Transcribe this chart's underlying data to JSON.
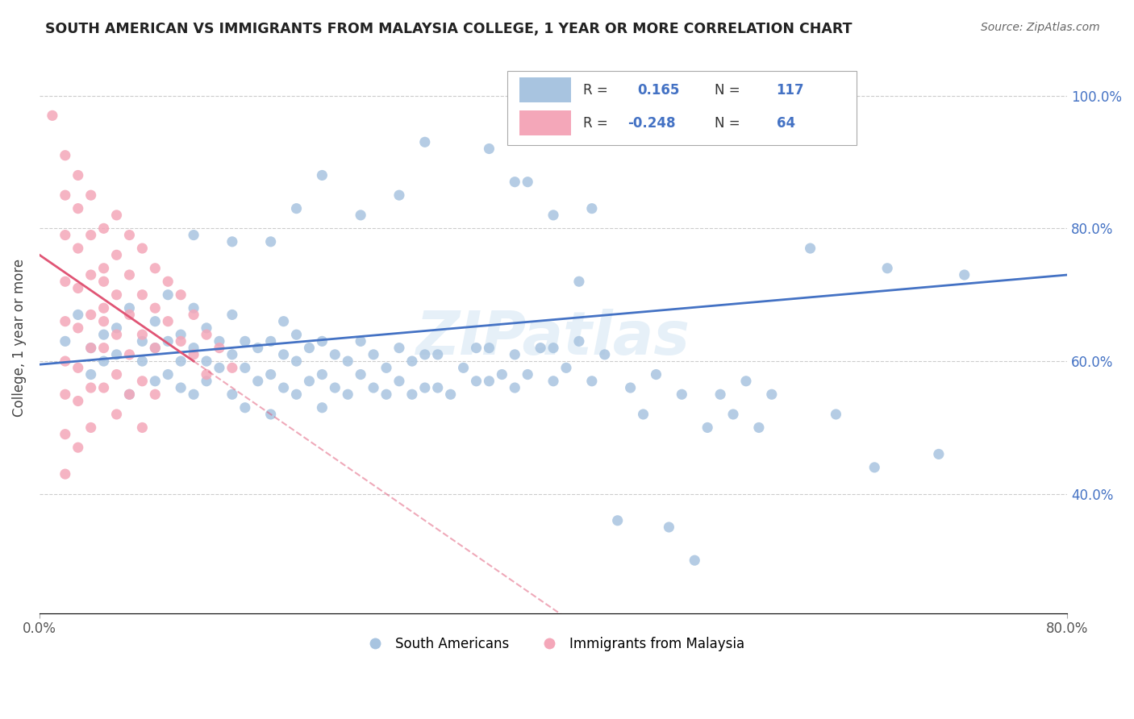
{
  "title": "SOUTH AMERICAN VS IMMIGRANTS FROM MALAYSIA COLLEGE, 1 YEAR OR MORE CORRELATION CHART",
  "source": "Source: ZipAtlas.com",
  "ylabel": "College, 1 year or more",
  "xlim": [
    0.0,
    0.8
  ],
  "ylim": [
    0.22,
    1.05
  ],
  "r_blue": 0.165,
  "n_blue": 117,
  "r_pink": -0.248,
  "n_pink": 64,
  "legend_blue": "South Americans",
  "legend_pink": "Immigrants from Malaysia",
  "blue_color": "#a8c4e0",
  "pink_color": "#f4a7b9",
  "blue_line_color": "#4472c4",
  "pink_line_color": "#e05575",
  "watermark": "ZIPatlas",
  "blue_scatter": [
    [
      0.02,
      0.63
    ],
    [
      0.03,
      0.67
    ],
    [
      0.04,
      0.58
    ],
    [
      0.04,
      0.62
    ],
    [
      0.05,
      0.64
    ],
    [
      0.05,
      0.6
    ],
    [
      0.06,
      0.61
    ],
    [
      0.06,
      0.65
    ],
    [
      0.07,
      0.55
    ],
    [
      0.07,
      0.68
    ],
    [
      0.08,
      0.6
    ],
    [
      0.08,
      0.63
    ],
    [
      0.09,
      0.57
    ],
    [
      0.09,
      0.62
    ],
    [
      0.09,
      0.66
    ],
    [
      0.1,
      0.58
    ],
    [
      0.1,
      0.63
    ],
    [
      0.1,
      0.7
    ],
    [
      0.11,
      0.56
    ],
    [
      0.11,
      0.6
    ],
    [
      0.11,
      0.64
    ],
    [
      0.12,
      0.55
    ],
    [
      0.12,
      0.62
    ],
    [
      0.12,
      0.68
    ],
    [
      0.13,
      0.57
    ],
    [
      0.13,
      0.6
    ],
    [
      0.13,
      0.65
    ],
    [
      0.14,
      0.59
    ],
    [
      0.14,
      0.63
    ],
    [
      0.15,
      0.55
    ],
    [
      0.15,
      0.61
    ],
    [
      0.15,
      0.67
    ],
    [
      0.16,
      0.53
    ],
    [
      0.16,
      0.59
    ],
    [
      0.16,
      0.63
    ],
    [
      0.17,
      0.57
    ],
    [
      0.17,
      0.62
    ],
    [
      0.18,
      0.52
    ],
    [
      0.18,
      0.58
    ],
    [
      0.18,
      0.63
    ],
    [
      0.19,
      0.56
    ],
    [
      0.19,
      0.61
    ],
    [
      0.19,
      0.66
    ],
    [
      0.2,
      0.55
    ],
    [
      0.2,
      0.6
    ],
    [
      0.2,
      0.64
    ],
    [
      0.21,
      0.57
    ],
    [
      0.21,
      0.62
    ],
    [
      0.22,
      0.53
    ],
    [
      0.22,
      0.58
    ],
    [
      0.22,
      0.63
    ],
    [
      0.23,
      0.56
    ],
    [
      0.23,
      0.61
    ],
    [
      0.24,
      0.55
    ],
    [
      0.24,
      0.6
    ],
    [
      0.25,
      0.58
    ],
    [
      0.25,
      0.63
    ],
    [
      0.26,
      0.56
    ],
    [
      0.26,
      0.61
    ],
    [
      0.27,
      0.55
    ],
    [
      0.27,
      0.59
    ],
    [
      0.28,
      0.57
    ],
    [
      0.28,
      0.62
    ],
    [
      0.29,
      0.55
    ],
    [
      0.29,
      0.6
    ],
    [
      0.3,
      0.56
    ],
    [
      0.3,
      0.61
    ],
    [
      0.31,
      0.56
    ],
    [
      0.31,
      0.61
    ],
    [
      0.32,
      0.55
    ],
    [
      0.33,
      0.59
    ],
    [
      0.34,
      0.57
    ],
    [
      0.34,
      0.62
    ],
    [
      0.35,
      0.57
    ],
    [
      0.35,
      0.62
    ],
    [
      0.36,
      0.58
    ],
    [
      0.37,
      0.56
    ],
    [
      0.37,
      0.61
    ],
    [
      0.38,
      0.58
    ],
    [
      0.39,
      0.62
    ],
    [
      0.4,
      0.57
    ],
    [
      0.4,
      0.62
    ],
    [
      0.41,
      0.59
    ],
    [
      0.42,
      0.63
    ],
    [
      0.43,
      0.57
    ],
    [
      0.44,
      0.61
    ],
    [
      0.45,
      0.36
    ],
    [
      0.46,
      0.56
    ],
    [
      0.47,
      0.52
    ],
    [
      0.48,
      0.58
    ],
    [
      0.49,
      0.35
    ],
    [
      0.5,
      0.55
    ],
    [
      0.51,
      0.3
    ],
    [
      0.52,
      0.5
    ],
    [
      0.53,
      0.55
    ],
    [
      0.54,
      0.52
    ],
    [
      0.55,
      0.57
    ],
    [
      0.56,
      0.5
    ],
    [
      0.57,
      0.55
    ],
    [
      0.3,
      0.93
    ],
    [
      0.35,
      0.92
    ],
    [
      0.37,
      0.87
    ],
    [
      0.4,
      0.82
    ],
    [
      0.43,
      0.83
    ],
    [
      0.38,
      0.87
    ],
    [
      0.42,
      0.72
    ],
    [
      0.22,
      0.88
    ],
    [
      0.2,
      0.83
    ],
    [
      0.25,
      0.82
    ],
    [
      0.28,
      0.85
    ],
    [
      0.18,
      0.78
    ],
    [
      0.15,
      0.78
    ],
    [
      0.12,
      0.79
    ],
    [
      0.6,
      0.77
    ],
    [
      0.62,
      0.52
    ],
    [
      0.65,
      0.44
    ],
    [
      0.66,
      0.74
    ],
    [
      0.7,
      0.46
    ],
    [
      0.72,
      0.73
    ]
  ],
  "pink_scatter": [
    [
      0.01,
      0.97
    ],
    [
      0.02,
      0.91
    ],
    [
      0.02,
      0.85
    ],
    [
      0.02,
      0.79
    ],
    [
      0.03,
      0.88
    ],
    [
      0.03,
      0.83
    ],
    [
      0.03,
      0.77
    ],
    [
      0.03,
      0.71
    ],
    [
      0.04,
      0.85
    ],
    [
      0.04,
      0.79
    ],
    [
      0.04,
      0.73
    ],
    [
      0.05,
      0.72
    ],
    [
      0.05,
      0.66
    ],
    [
      0.02,
      0.72
    ],
    [
      0.02,
      0.66
    ],
    [
      0.02,
      0.6
    ],
    [
      0.02,
      0.55
    ],
    [
      0.02,
      0.49
    ],
    [
      0.03,
      0.65
    ],
    [
      0.03,
      0.59
    ],
    [
      0.03,
      0.54
    ],
    [
      0.04,
      0.67
    ],
    [
      0.04,
      0.62
    ],
    [
      0.04,
      0.56
    ],
    [
      0.05,
      0.8
    ],
    [
      0.05,
      0.74
    ],
    [
      0.05,
      0.68
    ],
    [
      0.05,
      0.62
    ],
    [
      0.05,
      0.56
    ],
    [
      0.06,
      0.82
    ],
    [
      0.06,
      0.76
    ],
    [
      0.06,
      0.7
    ],
    [
      0.06,
      0.64
    ],
    [
      0.06,
      0.58
    ],
    [
      0.07,
      0.79
    ],
    [
      0.07,
      0.73
    ],
    [
      0.07,
      0.67
    ],
    [
      0.07,
      0.61
    ],
    [
      0.08,
      0.77
    ],
    [
      0.08,
      0.7
    ],
    [
      0.08,
      0.64
    ],
    [
      0.08,
      0.57
    ],
    [
      0.09,
      0.74
    ],
    [
      0.09,
      0.68
    ],
    [
      0.09,
      0.62
    ],
    [
      0.09,
      0.55
    ],
    [
      0.1,
      0.72
    ],
    [
      0.1,
      0.66
    ],
    [
      0.11,
      0.7
    ],
    [
      0.11,
      0.63
    ],
    [
      0.12,
      0.67
    ],
    [
      0.12,
      0.61
    ],
    [
      0.13,
      0.64
    ],
    [
      0.13,
      0.58
    ],
    [
      0.14,
      0.62
    ],
    [
      0.15,
      0.59
    ],
    [
      0.06,
      0.52
    ],
    [
      0.07,
      0.55
    ],
    [
      0.03,
      0.47
    ],
    [
      0.02,
      0.43
    ],
    [
      0.04,
      0.5
    ],
    [
      0.08,
      0.5
    ]
  ]
}
